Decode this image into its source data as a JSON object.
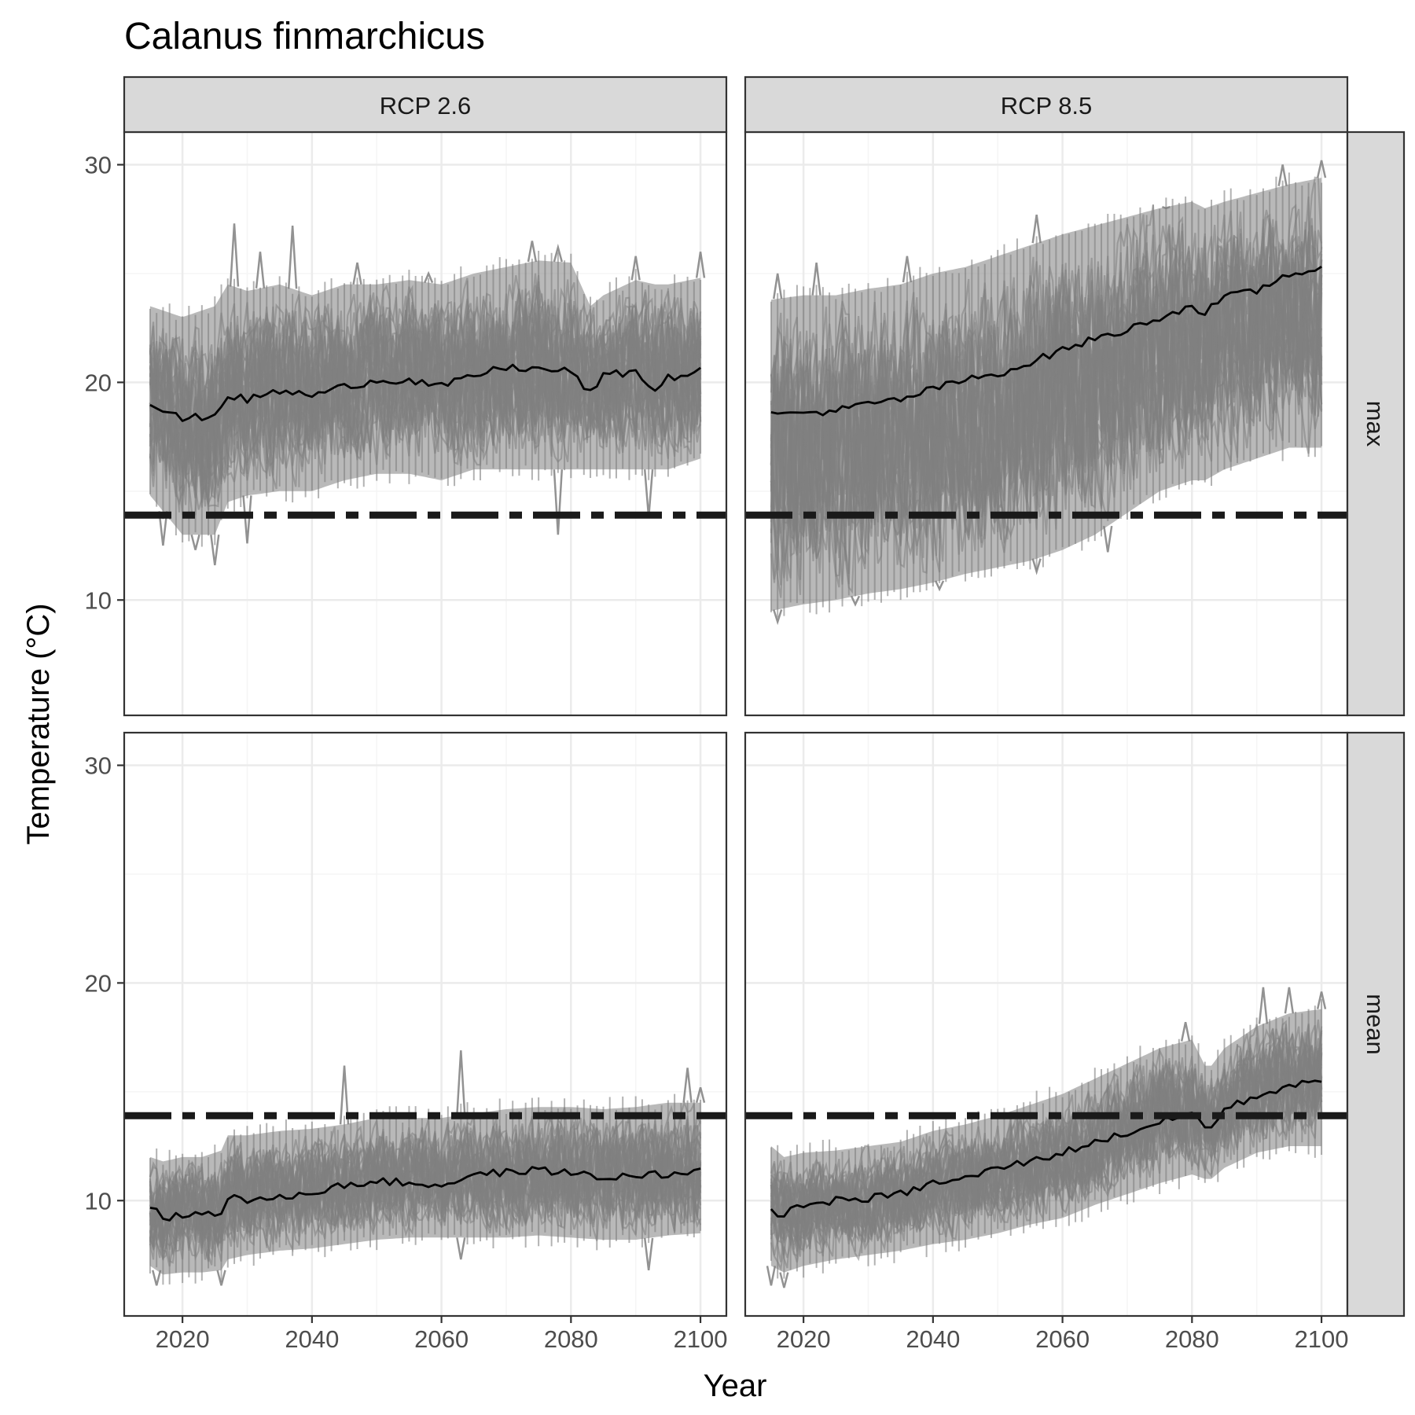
{
  "chart_data": {
    "type": "line",
    "title": "Calanus finmarchicus",
    "xlabel": "Year",
    "ylabel": "Temperature (°C)",
    "xlim": [
      2011,
      2104
    ],
    "ylim": [
      4.7,
      31.5
    ],
    "x_ticks": [
      2020,
      2040,
      2060,
      2080,
      2100
    ],
    "x_tick_labels": [
      "2020",
      "2040",
      "2060",
      "2080",
      "2100"
    ],
    "y_ticks": [
      10,
      20,
      30
    ],
    "y_tick_labels": [
      "10",
      "20",
      "30"
    ],
    "grid": true,
    "legend": "none",
    "col_facets": [
      "RCP 2.6",
      "RCP 8.5"
    ],
    "row_facets": [
      "max",
      "mean"
    ],
    "threshold": 13.9,
    "colors": {
      "ensemble": "#7f7f7f",
      "mean_line": "#000000",
      "threshold": "#1a1a1a",
      "strip_fill": "#d9d9d9",
      "panel_border": "#333333",
      "grid_major": "#ebebeb",
      "grid_minor": "#f5f5f5"
    },
    "panels": [
      {
        "col": "RCP 2.6",
        "row": "max",
        "x": [
          2015,
          2020,
          2025,
          2027,
          2030,
          2035,
          2040,
          2045,
          2050,
          2055,
          2060,
          2065,
          2070,
          2075,
          2080,
          2083,
          2085,
          2090,
          2093,
          2095,
          2100
        ],
        "mean": [
          19.0,
          18.3,
          18.5,
          19.4,
          19.2,
          19.6,
          19.4,
          19.8,
          20.1,
          20.1,
          19.8,
          20.3,
          20.7,
          20.6,
          20.5,
          19.5,
          20.3,
          20.5,
          19.6,
          20.2,
          20.5
        ],
        "upper": [
          23.5,
          23.0,
          23.5,
          24.5,
          24.2,
          24.5,
          24.0,
          24.5,
          24.5,
          24.7,
          24.5,
          25.0,
          25.3,
          25.6,
          25.5,
          23.5,
          24.0,
          24.7,
          24.5,
          24.5,
          24.8
        ],
        "lower": [
          14.8,
          13.0,
          13.0,
          14.5,
          14.8,
          15.0,
          15.0,
          15.5,
          15.8,
          15.8,
          15.5,
          16.0,
          16.0,
          16.0,
          16.0,
          16.0,
          16.0,
          16.0,
          16.0,
          16.0,
          16.5
        ],
        "spikes": [
          [
            2028,
            27.3
          ],
          [
            2032,
            26.0
          ],
          [
            2037,
            27.2
          ],
          [
            2047,
            25.5
          ],
          [
            2058,
            25.0
          ],
          [
            2074,
            26.5
          ],
          [
            2078,
            26.2
          ],
          [
            2090,
            25.8
          ],
          [
            2100,
            26.0
          ]
        ],
        "dips": [
          [
            2017,
            12.5
          ],
          [
            2022,
            12.3
          ],
          [
            2025,
            11.6
          ],
          [
            2030,
            12.6
          ],
          [
            2078,
            13.0
          ],
          [
            2092,
            13.8
          ]
        ]
      },
      {
        "col": "RCP 8.5",
        "row": "max",
        "x": [
          2015,
          2020,
          2025,
          2030,
          2035,
          2040,
          2045,
          2050,
          2055,
          2060,
          2065,
          2070,
          2075,
          2080,
          2082,
          2085,
          2090,
          2095,
          2100
        ],
        "mean": [
          18.5,
          18.6,
          18.7,
          19.0,
          19.2,
          19.7,
          20.1,
          20.4,
          20.9,
          21.5,
          22.0,
          22.4,
          23.0,
          23.5,
          23.2,
          23.9,
          24.2,
          25.0,
          25.2
        ],
        "upper": [
          23.8,
          24.0,
          24.0,
          24.3,
          24.5,
          25.0,
          25.3,
          25.8,
          26.3,
          26.8,
          27.2,
          27.6,
          28.0,
          28.3,
          28.0,
          28.3,
          28.7,
          29.1,
          29.4
        ],
        "lower": [
          9.5,
          9.8,
          10.0,
          10.3,
          10.5,
          10.8,
          11.2,
          11.5,
          11.8,
          12.3,
          13.0,
          14.0,
          15.0,
          15.5,
          15.5,
          16.0,
          16.5,
          17.0,
          17.0
        ],
        "spikes": [
          [
            2016,
            25.0
          ],
          [
            2022,
            25.5
          ],
          [
            2036,
            25.8
          ],
          [
            2056,
            27.7
          ],
          [
            2076,
            28.0
          ],
          [
            2094,
            30.0
          ],
          [
            2100,
            30.2
          ]
        ],
        "dips": [
          [
            2016,
            9.0
          ],
          [
            2028,
            9.8
          ],
          [
            2041,
            10.5
          ],
          [
            2056,
            11.3
          ],
          [
            2067,
            12.2
          ]
        ]
      },
      {
        "col": "RCP 2.6",
        "row": "mean",
        "x": [
          2015,
          2017,
          2020,
          2023,
          2026,
          2027,
          2030,
          2035,
          2040,
          2045,
          2050,
          2055,
          2060,
          2065,
          2070,
          2075,
          2080,
          2085,
          2090,
          2095,
          2100
        ],
        "mean": [
          9.8,
          9.2,
          9.3,
          9.4,
          9.5,
          10.2,
          10.0,
          10.1,
          10.4,
          10.7,
          10.9,
          10.8,
          10.7,
          11.2,
          11.3,
          11.4,
          11.3,
          11.0,
          11.2,
          11.2,
          11.3
        ],
        "upper": [
          12.0,
          11.8,
          12.0,
          12.0,
          12.3,
          13.0,
          13.0,
          13.2,
          13.3,
          13.5,
          13.8,
          13.8,
          13.8,
          14.0,
          14.2,
          14.3,
          14.3,
          14.2,
          14.3,
          14.5,
          14.5
        ],
        "lower": [
          7.0,
          6.6,
          6.7,
          6.7,
          6.8,
          7.3,
          7.5,
          7.7,
          7.8,
          8.0,
          8.2,
          8.3,
          8.3,
          8.3,
          8.3,
          8.4,
          8.3,
          8.2,
          8.2,
          8.4,
          8.5
        ],
        "spikes": [
          [
            2045,
            16.2
          ],
          [
            2063,
            16.9
          ],
          [
            2098,
            16.1
          ],
          [
            2100,
            15.2
          ]
        ],
        "dips": [
          [
            2016,
            6.1
          ],
          [
            2026,
            6.1
          ],
          [
            2063,
            7.3
          ],
          [
            2092,
            6.8
          ]
        ]
      },
      {
        "col": "RCP 8.5",
        "row": "mean",
        "x": [
          2015,
          2017,
          2020,
          2025,
          2030,
          2035,
          2040,
          2045,
          2050,
          2055,
          2060,
          2065,
          2070,
          2075,
          2080,
          2082,
          2083,
          2085,
          2090,
          2095,
          2100
        ],
        "mean": [
          9.5,
          9.4,
          9.8,
          10.0,
          10.1,
          10.3,
          10.8,
          11.0,
          11.5,
          11.8,
          12.2,
          12.7,
          13.1,
          13.6,
          14.0,
          13.5,
          13.3,
          14.2,
          14.8,
          15.3,
          15.4
        ],
        "upper": [
          12.5,
          12.0,
          12.2,
          12.3,
          12.5,
          12.7,
          13.2,
          13.5,
          13.9,
          14.4,
          14.9,
          15.6,
          16.3,
          17.0,
          17.4,
          16.2,
          16.2,
          17.0,
          18.0,
          18.6,
          18.8
        ],
        "lower": [
          7.0,
          6.7,
          7.0,
          7.3,
          7.5,
          7.7,
          8.0,
          8.2,
          8.5,
          8.9,
          9.2,
          9.8,
          10.3,
          10.8,
          11.2,
          11.0,
          11.0,
          11.5,
          12.2,
          12.5,
          12.5
        ],
        "spikes": [
          [
            2079,
            18.2
          ],
          [
            2091,
            19.8
          ],
          [
            2095,
            19.8
          ],
          [
            2100,
            19.6
          ]
        ],
        "dips": [
          [
            2015,
            6.1
          ],
          [
            2017,
            6.0
          ]
        ]
      }
    ]
  }
}
